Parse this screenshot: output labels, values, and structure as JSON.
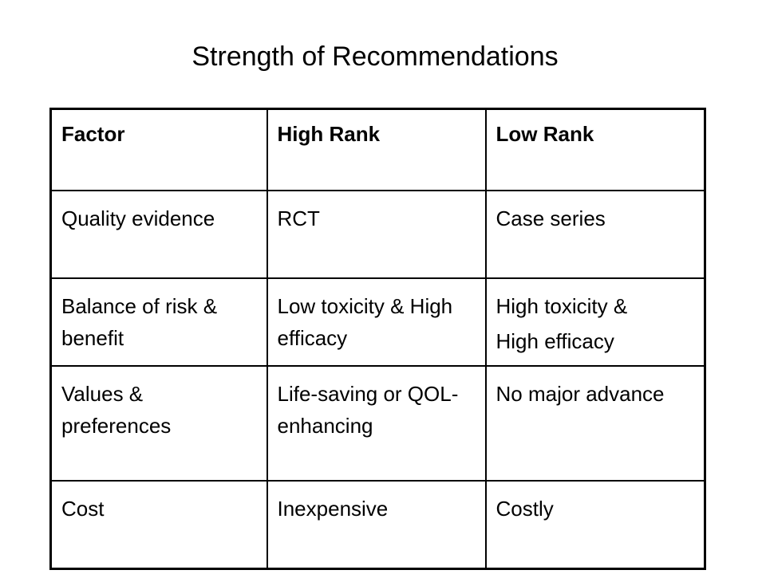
{
  "title": "Strength of Recommendations",
  "table": {
    "header": [
      "Factor",
      "High Rank",
      "Low Rank"
    ],
    "rows": [
      [
        "Quality evidence",
        "RCT",
        "Case series"
      ],
      [
        "Balance of risk & benefit",
        "Low toxicity & High efficacy",
        [
          "High toxicity &",
          "High efficacy"
        ]
      ],
      [
        "Values & preferences",
        "Life-saving or QOL-enhancing",
        "No major advance"
      ],
      [
        "Cost",
        "Inexpensive",
        "Costly"
      ]
    ]
  }
}
